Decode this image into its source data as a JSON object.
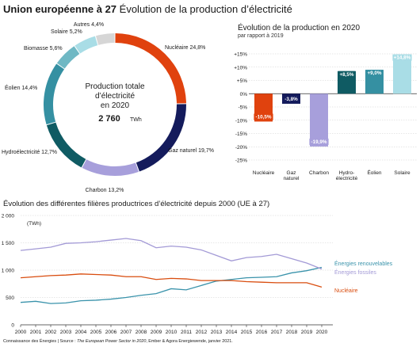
{
  "header": {
    "title_bold": "Union européenne à 27",
    "title_rest": " Évolution de la production d’électricité"
  },
  "footer": {
    "pre": "Connaissance des Énergies | Source : ",
    "italic": "The European Power Sector in 2020",
    "post": ", Ember & Agora Energiewende, janvier 2021."
  },
  "colors": {
    "nucleaire": "#e0420e",
    "gaz": "#141b5c",
    "charbon": "#a79fdb",
    "hydro": "#0f5b63",
    "eolien": "#3590a2",
    "biomasse": "#6fb8c4",
    "solaire": "#a9dde6",
    "autres": "#d6d6d6",
    "line_renouvelables": "#3a93ab",
    "line_fossiles": "#a39ad6",
    "line_nucleaire": "#d94d0f"
  },
  "chart_data": [
    {
      "type": "pie",
      "variant": "donut",
      "center_text": {
        "line1": "Production totale",
        "line2": "d’électricité",
        "line3": "en 2020",
        "value": "2 760",
        "unit": "TWh"
      },
      "slices": [
        {
          "key": "nucleaire",
          "label": "Nucléaire 24,8%",
          "value": 24.8
        },
        {
          "key": "gaz",
          "label": "Gaz naturel 19,7%",
          "value": 19.7
        },
        {
          "key": "charbon",
          "label": "Charbon 13,2%",
          "value": 13.2
        },
        {
          "key": "hydro",
          "label": "Hydroélectricité 12,7%",
          "value": 12.7
        },
        {
          "key": "eolien",
          "label": "Éolien 14,4%",
          "value": 14.4
        },
        {
          "key": "biomasse",
          "label": "Biomasse 5,6%",
          "value": 5.6
        },
        {
          "key": "solaire",
          "label": "Solaire 5,2%",
          "value": 5.2
        },
        {
          "key": "autres",
          "label": "Autres 4,4%",
          "value": 4.4
        }
      ]
    },
    {
      "type": "bar",
      "title": "Évolution de la production en 2020",
      "subtitle": "par rapport à 2019",
      "categories": [
        "Nucléaire",
        "Gaz naturel",
        "Charbon",
        "Hydro-électricité",
        "Éolien",
        "Solaire"
      ],
      "category_lines": [
        [
          "Nucléaire"
        ],
        [
          "Gaz",
          "naturel"
        ],
        [
          "Charbon"
        ],
        [
          "Hydro-",
          "électricité"
        ],
        [
          "Éolien"
        ],
        [
          "Solaire"
        ]
      ],
      "values": [
        -10.5,
        -3.8,
        -19.9,
        8.5,
        9.0,
        14.8
      ],
      "value_labels": [
        "-10,5%",
        "-3,8%",
        "-19,9%",
        "+8,5%",
        "+9,0%",
        "+14,8%"
      ],
      "bar_colors": [
        "nucleaire",
        "gaz",
        "charbon",
        "hydro",
        "eolien",
        "solaire"
      ],
      "ylim": [
        -25,
        15
      ],
      "ticks": [
        15,
        10,
        5,
        0,
        -5,
        -10,
        -15,
        -20,
        -25
      ],
      "tick_labels": [
        "+15%",
        "+10%",
        "+5%",
        "0%",
        "-5%",
        "-10%",
        "-15%",
        "-20%",
        "-25%"
      ],
      "grid": true
    },
    {
      "type": "line",
      "title": "Évolution des différentes filières productrices d’électricité depuis 2000 (UE à 27)",
      "ylabel": "(TWh)",
      "x": [
        2000,
        2001,
        2002,
        2003,
        2004,
        2005,
        2006,
        2007,
        2008,
        2009,
        2010,
        2011,
        2012,
        2013,
        2014,
        2015,
        2016,
        2017,
        2018,
        2019,
        2020
      ],
      "ylim": [
        0,
        2000
      ],
      "yticks": [
        0,
        500,
        1000,
        1500,
        2000
      ],
      "ytick_labels": [
        "0",
        "500",
        "1 000",
        "1 500",
        "2 000"
      ],
      "grid": true,
      "series": [
        {
          "name": "Énergies renouvelables",
          "color_key": "line_renouvelables",
          "values": [
            410,
            430,
            390,
            400,
            440,
            450,
            470,
            500,
            540,
            570,
            660,
            640,
            720,
            800,
            830,
            860,
            870,
            880,
            950,
            990,
            1050
          ]
        },
        {
          "name": "Énergies fossiles",
          "color_key": "line_fossiles",
          "values": [
            1360,
            1390,
            1420,
            1490,
            1500,
            1520,
            1550,
            1580,
            1540,
            1410,
            1440,
            1420,
            1370,
            1270,
            1170,
            1230,
            1250,
            1290,
            1210,
            1130,
            1020
          ]
        },
        {
          "name": "Nucléaire",
          "color_key": "line_nucleaire",
          "values": [
            860,
            880,
            900,
            910,
            930,
            920,
            910,
            880,
            880,
            830,
            850,
            840,
            810,
            810,
            810,
            790,
            780,
            770,
            770,
            770,
            690
          ]
        }
      ]
    }
  ]
}
